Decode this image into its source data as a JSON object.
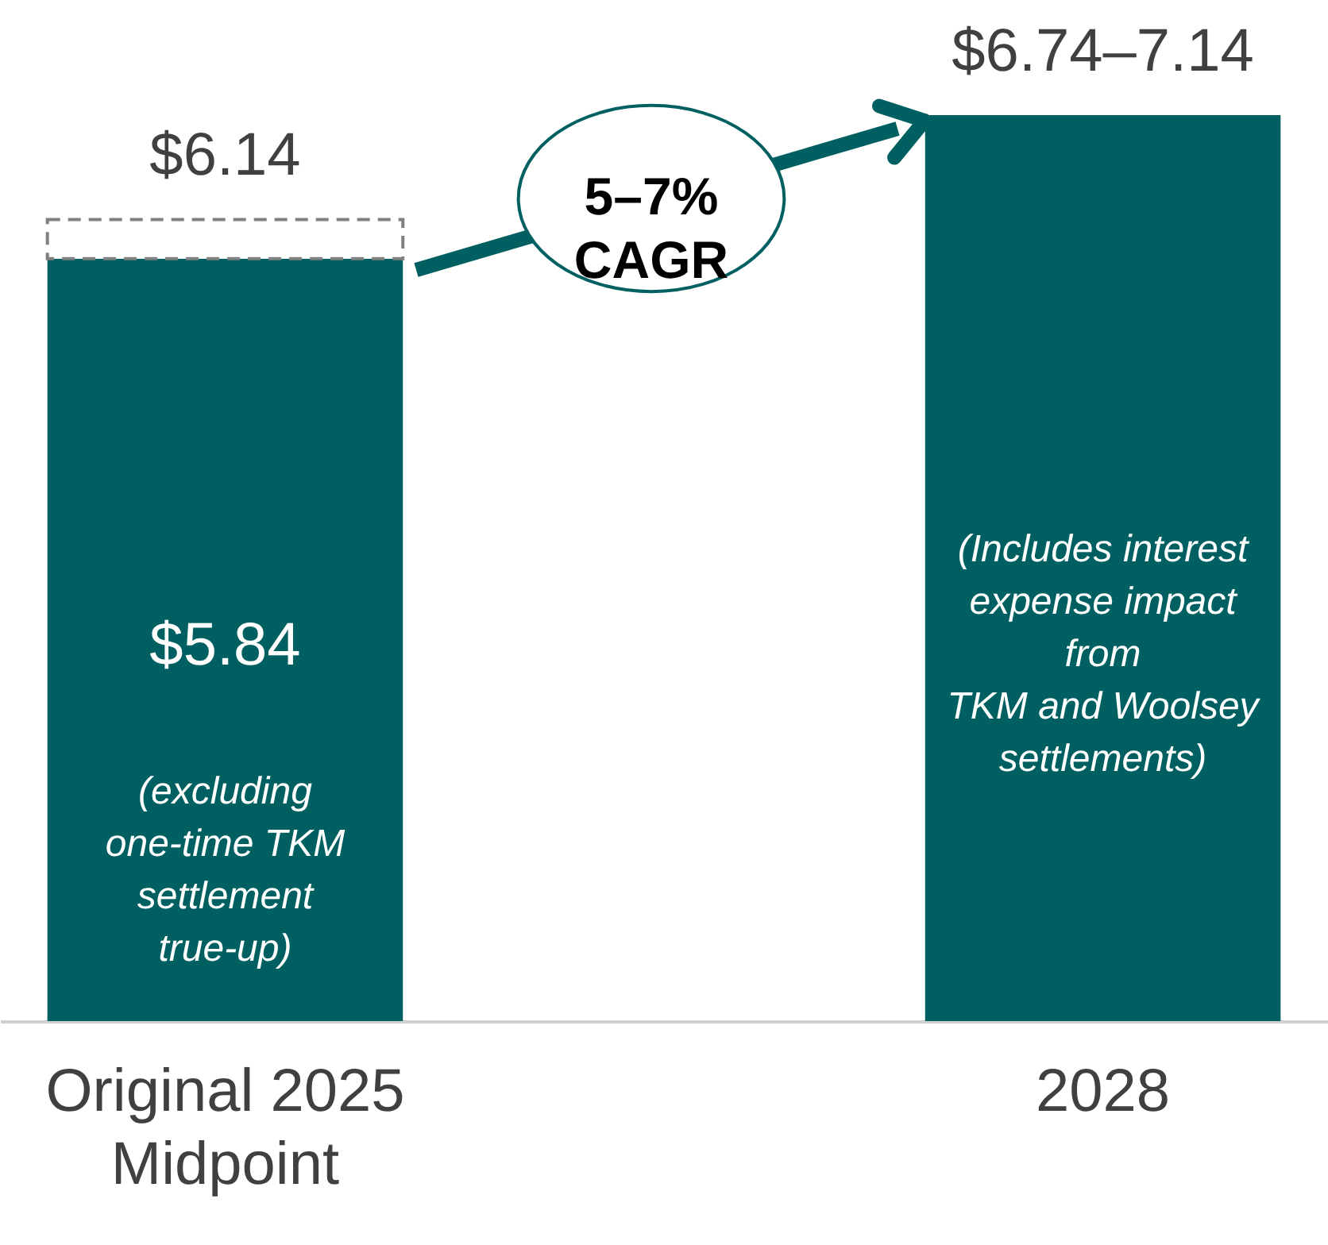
{
  "chart_data": {
    "type": "bar",
    "stacked": true,
    "categories": [
      "Original 2025\nMidpoint",
      "2028"
    ],
    "series": [
      {
        "color": "#005f60",
        "values": [
          5.84,
          6.94
        ],
        "value_labels": [
          "$5.84",
          null
        ]
      },
      {
        "color": "#808080",
        "line_style": "dashed",
        "values": [
          0.3,
          null
        ]
      }
    ],
    "totals": [
      "$6.14",
      "$6.74–7.14"
    ],
    "annotations": [
      "(excluding\none-time TKM\nsettlement\ntrue-up)",
      "(Includes interest\nexpense impact\nfrom\nTKM and Woolsey\nsettlements)",
      "5–7%\nCAGR"
    ]
  }
}
